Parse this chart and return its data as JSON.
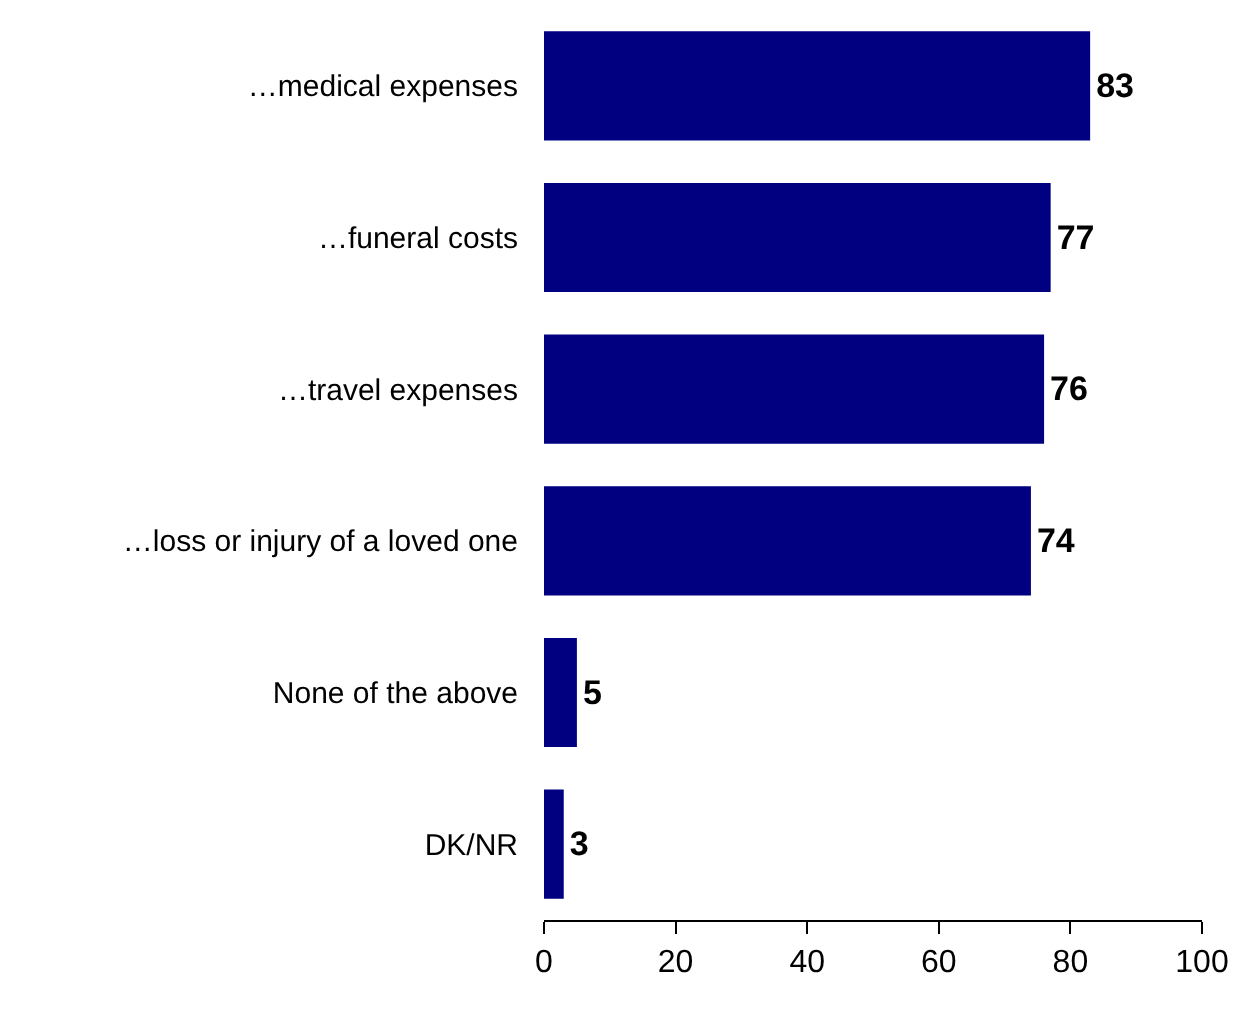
{
  "chart_data": {
    "type": "bar",
    "orientation": "horizontal",
    "categories": [
      "…medical expenses",
      "…funeral costs",
      "…travel expenses",
      "…loss or injury of a loved one",
      "None of the above",
      "DK/NR"
    ],
    "values": [
      83,
      77,
      76,
      74,
      5,
      3
    ],
    "color": "#000080",
    "xlim": [
      0,
      100
    ],
    "xticks": [
      0,
      20,
      40,
      60,
      80,
      100
    ],
    "grid": false,
    "legend": false,
    "data_labels": true
  }
}
